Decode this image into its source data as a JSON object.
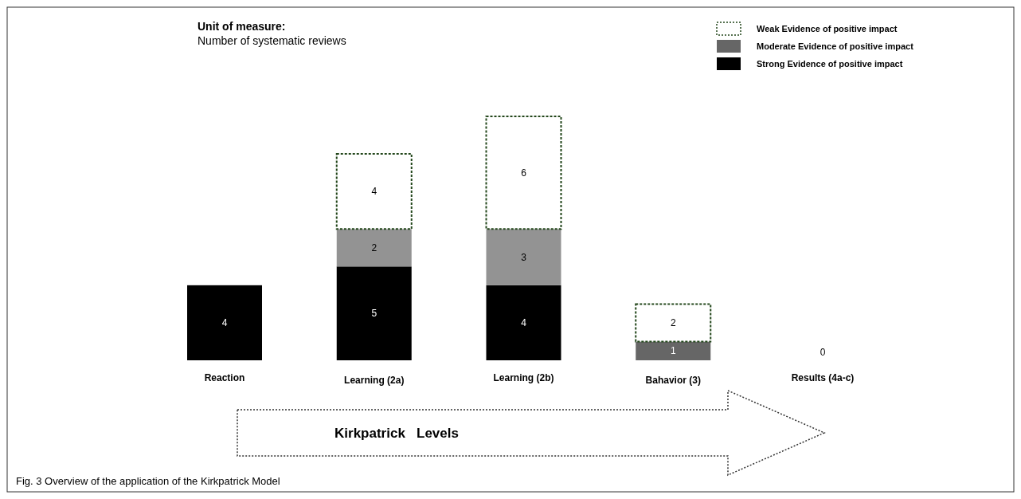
{
  "chart_data": {
    "type": "bar",
    "title": "Unit of measure:",
    "subtitle": "Number of systematic reviews",
    "categories": [
      "Reaction",
      "Learning (2a)",
      "Learning (2b)",
      "Bahavior (3)",
      "Results (4a-c)"
    ],
    "stacked": true,
    "series": [
      {
        "name": "Strong Evidence of positive impact",
        "color": "#000000",
        "values": [
          4,
          5,
          4,
          null,
          null
        ]
      },
      {
        "name": "Moderate Evidence of positive impact",
        "color": "#666666",
        "colors": [
          null,
          "#939393",
          "#939393",
          "#666666",
          null
        ],
        "values": [
          null,
          2,
          3,
          1,
          null
        ]
      },
      {
        "name": "Weak Evidence of positive impact",
        "color": "#22461a",
        "line_style": "dotted",
        "values": [
          null,
          4,
          6,
          2,
          0
        ]
      }
    ],
    "data_labels": true,
    "xlabel": "Kirkpatrick   Levels",
    "legend": "top right",
    "annotations": [
      "Fig. 3 Overview of the application of the Kirkpatrick Model"
    ]
  }
}
